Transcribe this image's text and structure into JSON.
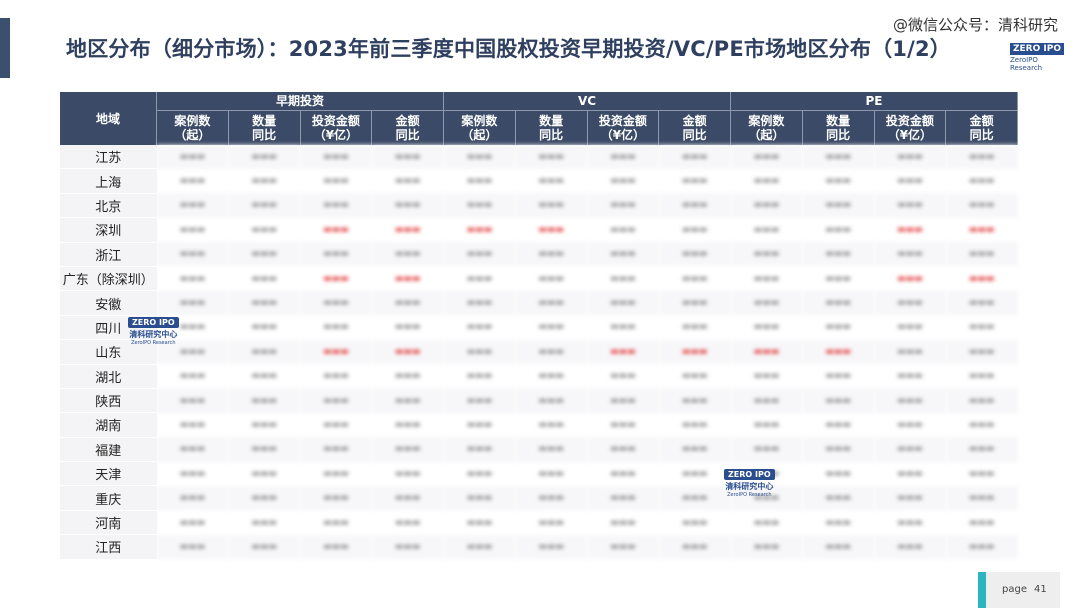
{
  "header": {
    "title": "地区分布（细分市场）：2023年前三季度中国股权投资早期投资/VC/PE市场地区分布（1/2）",
    "watermark": "@微信公众号：清科研究",
    "logo_text": "ZERO IPO",
    "logo_sub": "ZeroIPO Research"
  },
  "table": {
    "region_header": "地域",
    "groups": [
      "早期投资",
      "VC",
      "PE"
    ],
    "sub_headers": [
      "案例数\n（起）",
      "数量\n同比",
      "投资金额\n（¥亿）",
      "金额\n同比"
    ],
    "regions": [
      "江苏",
      "上海",
      "北京",
      "深圳",
      "浙江",
      "广东（除深圳）",
      "安徽",
      "四川",
      "山东",
      "湖北",
      "陕西",
      "湖南",
      "福建",
      "天津",
      "重庆",
      "河南",
      "江西"
    ]
  },
  "watermark_logo": {
    "brand": "ZERO IPO",
    "cn": "清科研究中心",
    "en": "ZeroIPO Research"
  },
  "footer": {
    "page_label": "page",
    "page_number": "41"
  }
}
